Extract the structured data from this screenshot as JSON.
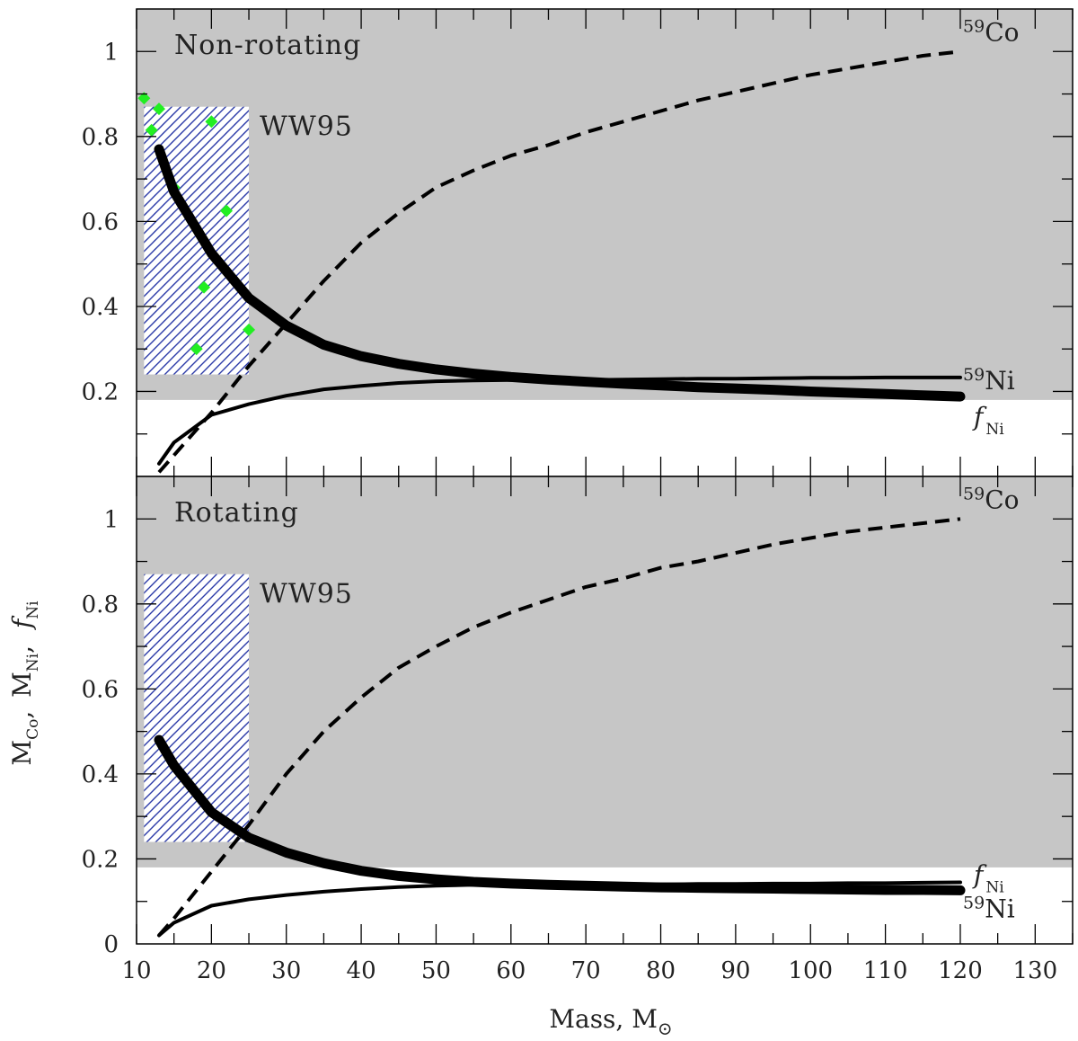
{
  "chart_data": {
    "type": "line",
    "shared_x_axis": {
      "label": "Mass, M",
      "label_symbol": "⊙",
      "range": [
        10,
        135
      ],
      "ticks": [
        10,
        20,
        30,
        40,
        50,
        60,
        70,
        80,
        90,
        100,
        110,
        120,
        130
      ]
    },
    "y_axis_label": {
      "m": "M",
      "co_sub": "Co",
      "ni_sub": "Ni",
      "f": "f",
      "f_sub": "Ni",
      "sep": ","
    },
    "shaded_region": {
      "y_min": 0.18,
      "color": "#c6c6c6"
    },
    "ww95_box": {
      "x": [
        11,
        25
      ],
      "y": [
        0.24,
        0.87
      ],
      "label": "WW95",
      "hatch_color": "#2b3aa8"
    },
    "panels": [
      {
        "title": "Non-rotating",
        "ylim": [
          0,
          1.1
        ],
        "y_ticks": [
          0.2,
          0.4,
          0.6,
          0.8,
          1
        ],
        "y_tick_labels": [
          "0.2",
          "0.4",
          "0.6",
          "0.8",
          "1"
        ],
        "points": {
          "color": "#22ee22",
          "x": [
            11,
            12,
            13,
            15,
            18,
            19,
            20,
            22,
            25
          ],
          "y": [
            0.89,
            0.815,
            0.865,
            0.68,
            0.3,
            0.445,
            0.835,
            0.625,
            0.345
          ]
        },
        "series": [
          {
            "label_iso": "59",
            "label_el": "Co",
            "style": "dashed",
            "x": [
              13,
              15,
              20,
              25,
              30,
              35,
              40,
              45,
              50,
              55,
              60,
              65,
              70,
              75,
              80,
              85,
              90,
              95,
              100,
              105,
              110,
              115,
              120
            ],
            "y": [
              0.01,
              0.05,
              0.15,
              0.26,
              0.36,
              0.46,
              0.55,
              0.62,
              0.68,
              0.72,
              0.755,
              0.78,
              0.81,
              0.835,
              0.86,
              0.885,
              0.905,
              0.925,
              0.945,
              0.96,
              0.975,
              0.99,
              1.0
            ]
          },
          {
            "label_iso": "59",
            "label_el": "Ni",
            "style": "thin",
            "x": [
              13,
              15,
              20,
              25,
              30,
              35,
              40,
              45,
              50,
              55,
              60,
              65,
              70,
              75,
              80,
              85,
              90,
              95,
              100,
              105,
              110,
              115,
              120
            ],
            "y": [
              0.03,
              0.08,
              0.145,
              0.17,
              0.19,
              0.205,
              0.213,
              0.22,
              0.224,
              0.226,
              0.227,
              0.227,
              0.227,
              0.228,
              0.229,
              0.23,
              0.23,
              0.231,
              0.232,
              0.232,
              0.233,
              0.233,
              0.233
            ]
          },
          {
            "label_f": "f",
            "label_sub": "Ni",
            "style": "thick",
            "x": [
              13,
              15,
              20,
              25,
              30,
              35,
              40,
              45,
              50,
              55,
              60,
              65,
              70,
              75,
              80,
              85,
              90,
              95,
              100,
              105,
              110,
              115,
              120
            ],
            "y": [
              0.77,
              0.67,
              0.525,
              0.42,
              0.355,
              0.31,
              0.283,
              0.265,
              0.252,
              0.242,
              0.234,
              0.228,
              0.223,
              0.218,
              0.214,
              0.21,
              0.207,
              0.204,
              0.2,
              0.197,
              0.194,
              0.191,
              0.188
            ]
          }
        ]
      },
      {
        "title": "Rotating",
        "ylim": [
          0,
          1.1
        ],
        "y_ticks": [
          0,
          0.2,
          0.4,
          0.6,
          0.8,
          1
        ],
        "y_tick_labels": [
          "0",
          "0.2",
          "0.4",
          "0.6",
          "0.8",
          "1"
        ],
        "series": [
          {
            "label_iso": "59",
            "label_el": "Co",
            "style": "dashed",
            "x": [
              13,
              15,
              20,
              25,
              30,
              35,
              40,
              45,
              50,
              55,
              60,
              65,
              70,
              75,
              80,
              85,
              90,
              95,
              100,
              105,
              110,
              115,
              120
            ],
            "y": [
              0.02,
              0.06,
              0.17,
              0.28,
              0.4,
              0.5,
              0.58,
              0.65,
              0.7,
              0.745,
              0.78,
              0.81,
              0.84,
              0.86,
              0.885,
              0.9,
              0.92,
              0.94,
              0.955,
              0.97,
              0.98,
              0.99,
              1.0
            ]
          },
          {
            "label_iso": "59",
            "label_el": "Ni",
            "style": "thin",
            "x": [
              13,
              15,
              20,
              25,
              30,
              35,
              40,
              45,
              50,
              55,
              60,
              65,
              70,
              75,
              80,
              85,
              90,
              95,
              100,
              105,
              110,
              115,
              120
            ],
            "y": [
              0.02,
              0.05,
              0.09,
              0.105,
              0.115,
              0.123,
              0.129,
              0.134,
              0.137,
              0.139,
              0.14,
              0.14,
              0.14,
              0.14,
              0.14,
              0.141,
              0.141,
              0.142,
              0.142,
              0.143,
              0.143,
              0.144,
              0.145
            ]
          },
          {
            "label_f": "f",
            "label_sub": "Ni",
            "style": "thick",
            "x": [
              13,
              15,
              20,
              25,
              30,
              35,
              40,
              45,
              50,
              55,
              60,
              65,
              70,
              75,
              80,
              85,
              90,
              95,
              100,
              105,
              110,
              115,
              120
            ],
            "y": [
              0.48,
              0.42,
              0.31,
              0.25,
              0.215,
              0.19,
              0.172,
              0.16,
              0.152,
              0.146,
              0.142,
              0.139,
              0.137,
              0.135,
              0.133,
              0.132,
              0.131,
              0.13,
              0.129,
              0.128,
              0.127,
              0.127,
              0.126
            ]
          }
        ]
      }
    ]
  }
}
